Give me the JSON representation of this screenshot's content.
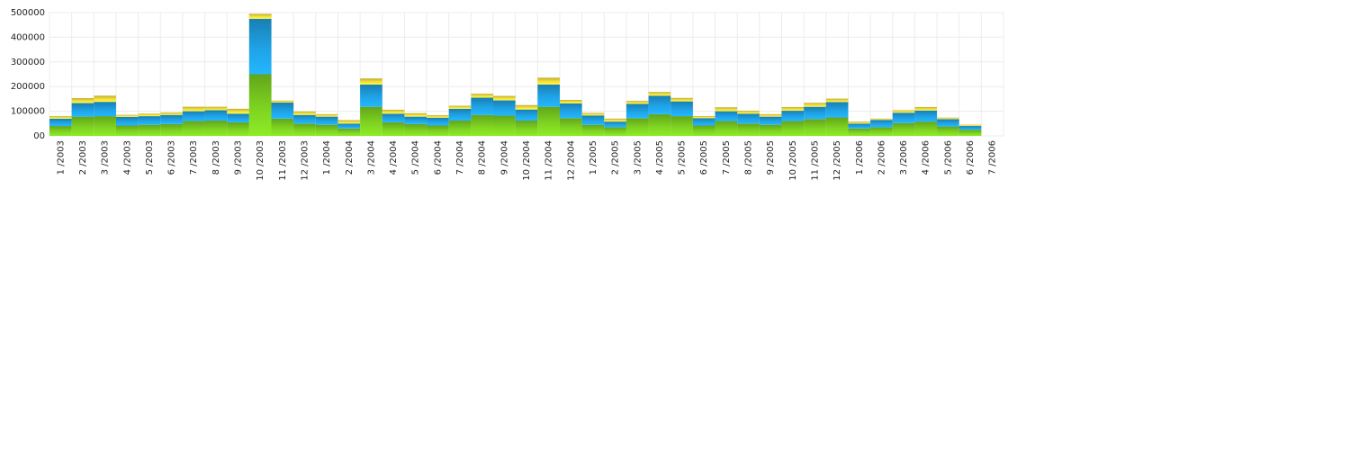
{
  "chart_data": {
    "type": "bar",
    "stacked": true,
    "title": "",
    "xlabel": "",
    "ylabel": "",
    "ylim": [
      0,
      500000
    ],
    "yticks": [
      {
        "value": 0,
        "label": "00"
      },
      {
        "value": 100000,
        "label": "100000"
      },
      {
        "value": 200000,
        "label": "200000"
      },
      {
        "value": 300000,
        "label": "300000"
      },
      {
        "value": 400000,
        "label": "400000"
      },
      {
        "value": 500000,
        "label": "500000"
      }
    ],
    "grid": true,
    "legend": "none",
    "categories": [
      "1 /2003",
      "2 /2003",
      "3 /2003",
      "4 /2003",
      "5 /2003",
      "6 /2003",
      "7 /2003",
      "8 /2003",
      "9 /2003",
      "10 /2003",
      "11 /2003",
      "12 /2003",
      "1 /2004",
      "2 /2004",
      "3 /2004",
      "4 /2004",
      "5 /2004",
      "6 /2004",
      "7 /2004",
      "8 /2004",
      "9 /2004",
      "10 /2004",
      "11 /2004",
      "12 /2004",
      "1 /2005",
      "2 /2005",
      "3 /2005",
      "4 /2005",
      "5 /2005",
      "6 /2005",
      "7 /2005",
      "8 /2005",
      "9 /2005",
      "10 /2005",
      "11 /2005",
      "12 /2005",
      "1 /2006",
      "2 /2006",
      "3 /2006",
      "4 /2006",
      "5 /2006",
      "6 /2006",
      "7 /2006"
    ],
    "series": [
      {
        "color": "#7ed321",
        "values": [
          40000,
          78000,
          80000,
          42000,
          45000,
          48000,
          60000,
          62000,
          55000,
          250000,
          70000,
          50000,
          45000,
          30000,
          118000,
          55000,
          48000,
          42000,
          62000,
          85000,
          82000,
          62000,
          118000,
          72000,
          45000,
          35000,
          72000,
          88000,
          80000,
          42000,
          60000,
          50000,
          45000,
          60000,
          68000,
          75000,
          30000,
          35000,
          52000,
          58000,
          38000,
          25000,
          0
        ]
      },
      {
        "color": "#1fa3e6",
        "values": [
          30000,
          55000,
          58000,
          35000,
          35000,
          37000,
          40000,
          42000,
          35000,
          225000,
          65000,
          35000,
          33000,
          20000,
          90000,
          35000,
          30000,
          32000,
          48000,
          70000,
          62000,
          45000,
          90000,
          60000,
          38000,
          23000,
          58000,
          75000,
          60000,
          30000,
          40000,
          40000,
          33000,
          42000,
          50000,
          62000,
          20000,
          30000,
          42000,
          45000,
          30000,
          15000,
          0
        ]
      },
      {
        "color": "#f5df3a",
        "values": [
          10000,
          20000,
          25000,
          8000,
          10000,
          10000,
          18000,
          14000,
          20000,
          20000,
          8000,
          14000,
          10000,
          14000,
          25000,
          16000,
          14000,
          10000,
          12000,
          16000,
          18000,
          18000,
          28000,
          14000,
          10000,
          12000,
          12000,
          15000,
          14000,
          8000,
          16000,
          12000,
          10000,
          15000,
          16000,
          14000,
          8000,
          5000,
          10000,
          14000,
          6000,
          5000,
          0
        ]
      }
    ]
  }
}
